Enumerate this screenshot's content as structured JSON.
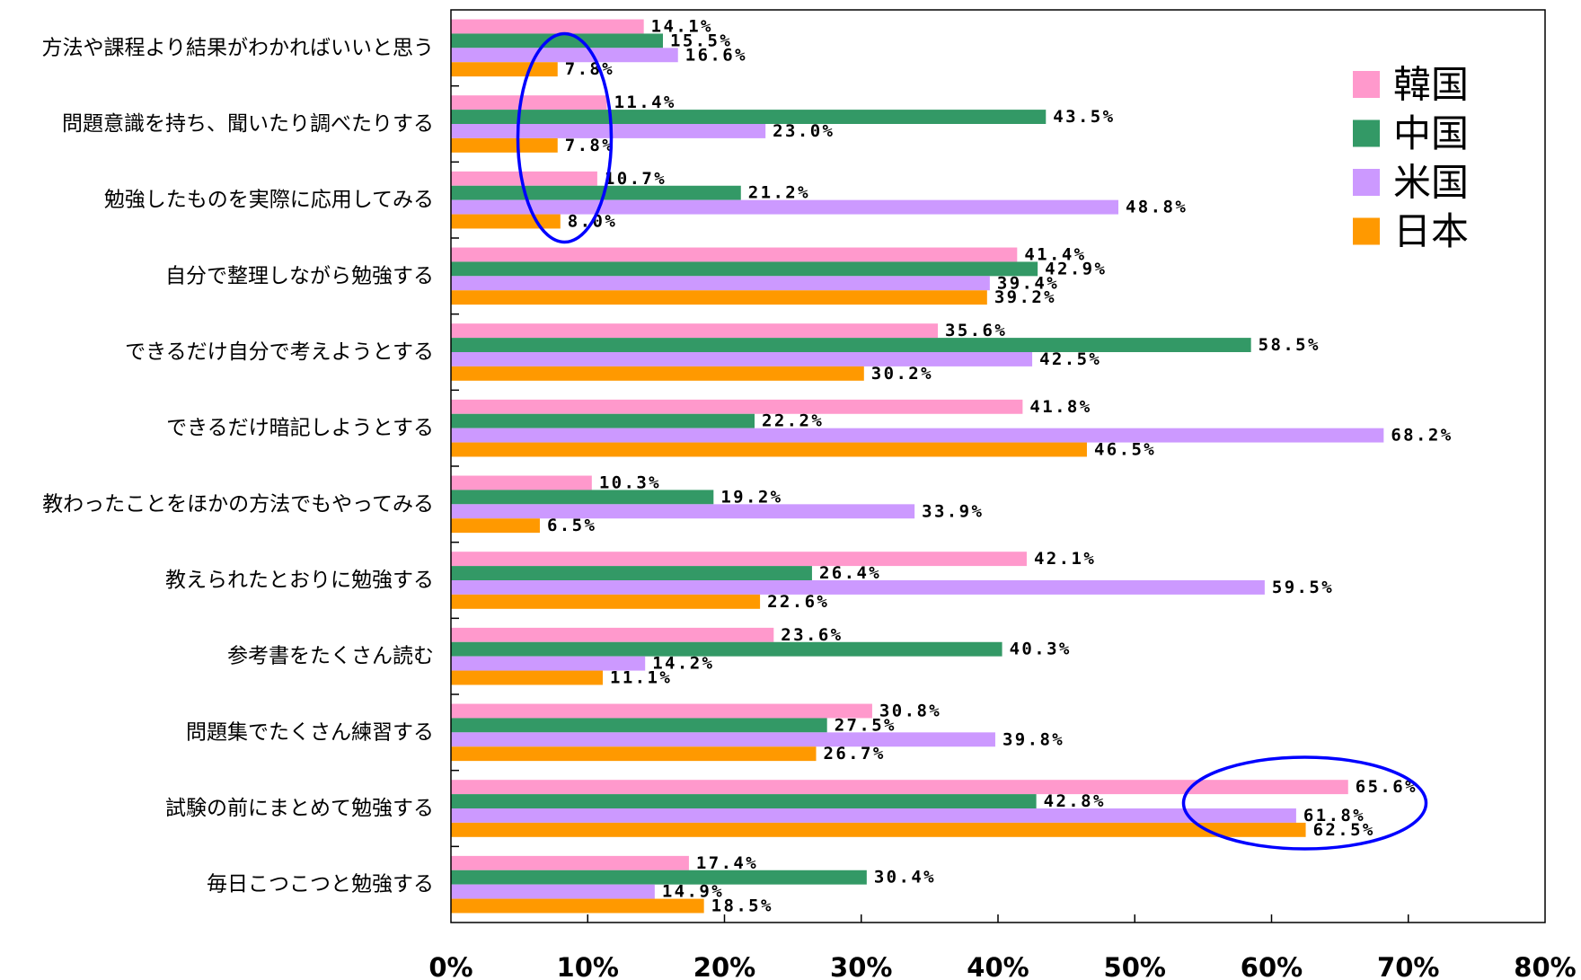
{
  "chart_data": {
    "type": "bar",
    "orientation": "horizontal",
    "categories": [
      "方法や課程より結果がわかればいいと思う",
      "問題意識を持ち、聞いたり調べたりする",
      "勉強したものを実際に応用してみる",
      "自分で整理しながら勉強する",
      "できるだけ自分で考えようとする",
      "できるだけ暗記しようとする",
      "教わったことをほかの方法でもやってみる",
      "教えられたとおりに勉強する",
      "参考書をたくさん読む",
      "問題集でたくさん練習する",
      "試験の前にまとめて勉強する",
      "毎日こつこつと勉強する"
    ],
    "series": [
      {
        "name": "韓国",
        "color": "#FF99CC",
        "values": [
          14.1,
          11.4,
          10.7,
          41.4,
          35.6,
          41.8,
          10.3,
          42.1,
          23.6,
          30.8,
          65.6,
          17.4
        ]
      },
      {
        "name": "中国",
        "color": "#339966",
        "values": [
          15.5,
          43.5,
          21.2,
          42.9,
          58.5,
          22.2,
          19.2,
          26.4,
          40.3,
          27.5,
          42.8,
          30.4
        ]
      },
      {
        "name": "米国",
        "color": "#CC99FF",
        "values": [
          16.6,
          23.0,
          48.8,
          39.4,
          42.5,
          68.2,
          33.9,
          59.5,
          14.2,
          39.8,
          61.8,
          14.9
        ]
      },
      {
        "name": "日本",
        "color": "#FF9900",
        "values": [
          7.8,
          7.8,
          8.0,
          39.2,
          30.2,
          46.5,
          6.5,
          22.6,
          11.1,
          26.7,
          62.5,
          18.5
        ]
      }
    ],
    "unit": "%",
    "xlim": [
      0,
      80
    ],
    "x_ticks": [
      0,
      10,
      20,
      30,
      40,
      50,
      60,
      70,
      80
    ],
    "data_labels": true,
    "legend_position": "top-right",
    "grid": false,
    "highlight_color": "#0000FF"
  }
}
